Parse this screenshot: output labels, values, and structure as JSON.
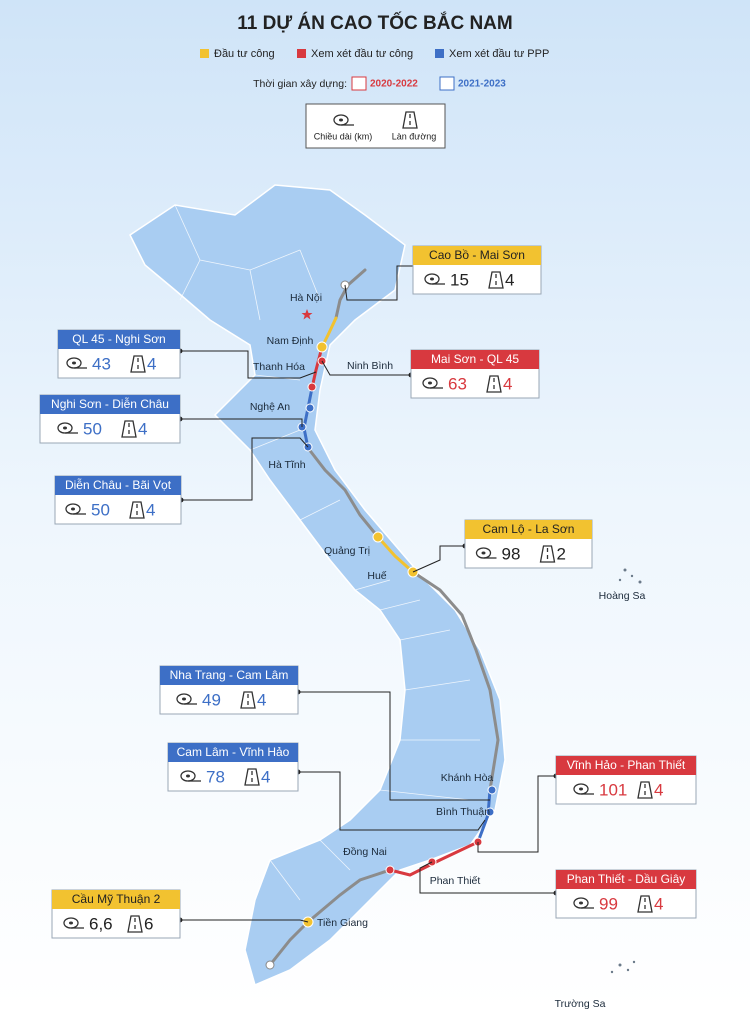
{
  "header": {
    "title": "11 DỰ ÁN CAO TỐC BẮC NAM"
  },
  "legend": [
    {
      "label": "Đầu tư công",
      "color": "#f2c230"
    },
    {
      "label": "Xem xét đầu tư công",
      "color": "#d8393f"
    },
    {
      "label": "Xem xét đầu tư PPP",
      "color": "#3d6fc6"
    }
  ],
  "timeline": {
    "label": "Thời gian xây dựng:",
    "periods": [
      {
        "label": "2020-2022",
        "color": "#d8393f"
      },
      {
        "label": "2021-2023",
        "color": "#3d6fc6"
      }
    ]
  },
  "key": {
    "length": "Chiều dài (km)",
    "lanes": "Làn đường"
  },
  "projects": [
    {
      "name": "Cao Bồ - Mai Sơn",
      "length": "15",
      "lanes": "4",
      "color": "#f2c230",
      "text_color": "#222"
    },
    {
      "name": "QL 45 - Nghi Sơn",
      "length": "43",
      "lanes": "4",
      "color": "#3d6fc6",
      "text_color": "#3d6fc6"
    },
    {
      "name": "Mai Sơn - QL 45",
      "length": "63",
      "lanes": "4",
      "color": "#d8393f",
      "text_color": "#d8393f"
    },
    {
      "name": "Nghi Sơn - Diễn Châu",
      "length": "50",
      "lanes": "4",
      "color": "#3d6fc6",
      "text_color": "#3d6fc6"
    },
    {
      "name": "Diễn Châu - Bãi Vọt",
      "length": "50",
      "lanes": "4",
      "color": "#3d6fc6",
      "text_color": "#3d6fc6"
    },
    {
      "name": "Cam Lộ - La Sơn",
      "length": "98",
      "lanes": "2",
      "color": "#f2c230",
      "text_color": "#222"
    },
    {
      "name": "Nha Trang - Cam Lâm",
      "length": "49",
      "lanes": "4",
      "color": "#3d6fc6",
      "text_color": "#3d6fc6"
    },
    {
      "name": "Cam Lâm - Vĩnh Hảo",
      "length": "78",
      "lanes": "4",
      "color": "#3d6fc6",
      "text_color": "#3d6fc6"
    },
    {
      "name": "Vĩnh Hảo - Phan Thiết",
      "length": "101",
      "lanes": "4",
      "color": "#d8393f",
      "text_color": "#d8393f"
    },
    {
      "name": "Phan Thiết - Dầu Giây",
      "length": "99",
      "lanes": "4",
      "color": "#d8393f",
      "text_color": "#d8393f"
    },
    {
      "name": "Cầu Mỹ Thuận 2",
      "length": "6,6",
      "lanes": "6",
      "color": "#f2c230",
      "text_color": "#222"
    }
  ],
  "places": [
    "Hà Nội",
    "Nam Định",
    "Ninh Bình",
    "Thanh Hóa",
    "Nghệ An",
    "Hà Tĩnh",
    "Quảng Trị",
    "Huế",
    "Hoàng Sa",
    "Khánh Hòa",
    "Bình Thuận",
    "Đồng Nai",
    "Phan Thiết",
    "Tiền Giang",
    "Trường Sa"
  ]
}
